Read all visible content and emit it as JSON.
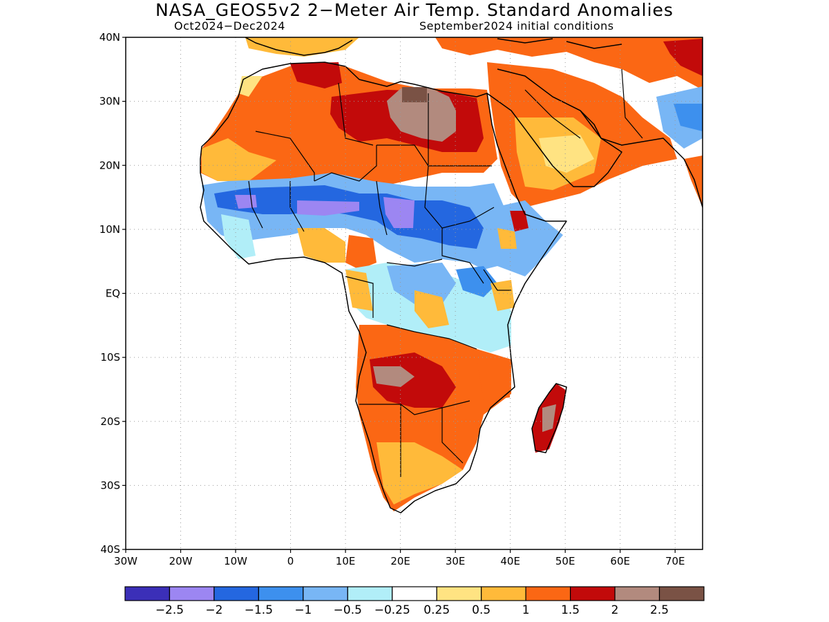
{
  "header": {
    "title": "NASA_GEOS5v2 2−Meter Air Temp. Standard Anomalies",
    "period": "Oct2024−Dec2024",
    "init": "September2024 initial conditions"
  },
  "map": {
    "lon_range": [
      -30,
      75
    ],
    "lat_range": [
      -40,
      40
    ],
    "lon_ticks": [
      {
        "v": -30,
        "label": "30W"
      },
      {
        "v": -20,
        "label": "20W"
      },
      {
        "v": -10,
        "label": "10W"
      },
      {
        "v": 0,
        "label": "0"
      },
      {
        "v": 10,
        "label": "10E"
      },
      {
        "v": 20,
        "label": "20E"
      },
      {
        "v": 30,
        "label": "30E"
      },
      {
        "v": 40,
        "label": "40E"
      },
      {
        "v": 50,
        "label": "50E"
      },
      {
        "v": 60,
        "label": "60E"
      },
      {
        "v": 70,
        "label": "70E"
      }
    ],
    "lat_ticks": [
      {
        "v": 40,
        "label": "40N"
      },
      {
        "v": 30,
        "label": "30N"
      },
      {
        "v": 20,
        "label": "20N"
      },
      {
        "v": 10,
        "label": "10N"
      },
      {
        "v": 0,
        "label": "EQ"
      },
      {
        "v": -10,
        "label": "10S"
      },
      {
        "v": -20,
        "label": "20S"
      },
      {
        "v": -30,
        "label": "30S"
      },
      {
        "v": -40,
        "label": "40S"
      }
    ],
    "grid": true
  },
  "colorbar": {
    "colors": [
      "#3b2fb8",
      "#9c86f2",
      "#2467e0",
      "#3d90ee",
      "#78b6f5",
      "#b1eef8",
      "#ffffff",
      "#ffe382",
      "#ffba3a",
      "#fb6714",
      "#c20a0a",
      "#b28a7e",
      "#7a5245"
    ],
    "labels": [
      "−2.5",
      "−2",
      "−1.5",
      "−1",
      "−0.5",
      "−0.25",
      "0.25",
      "0.5",
      "1",
      "1.5",
      "2",
      "2.5"
    ]
  }
}
